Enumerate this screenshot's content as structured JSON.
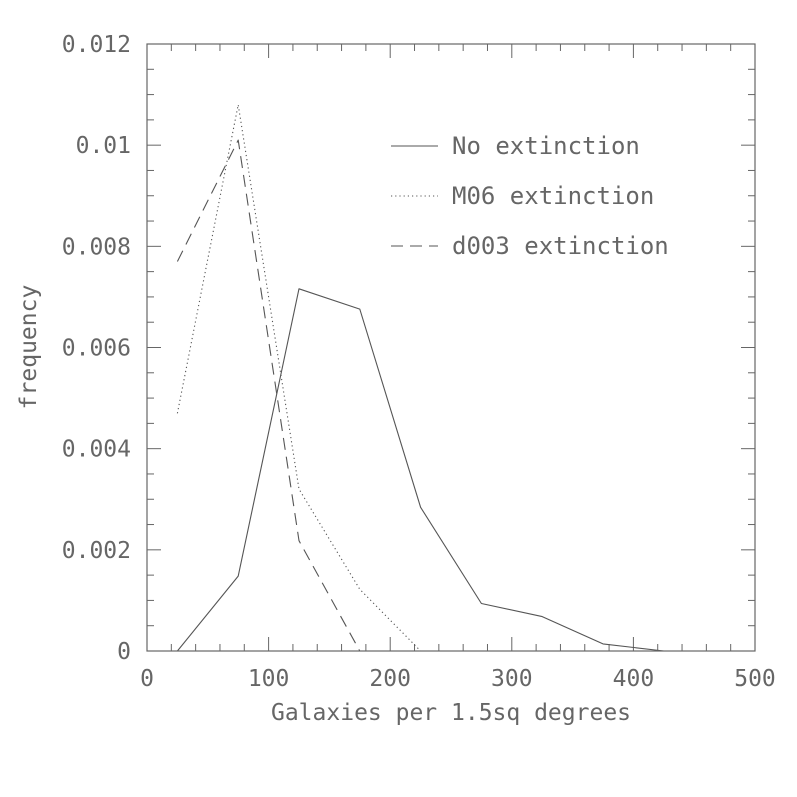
{
  "chart_data": {
    "type": "line",
    "title": "",
    "xlabel": "Galaxies per 1.5sq degrees",
    "ylabel": "frequency",
    "xlim": [
      0,
      500
    ],
    "ylim": [
      0,
      0.012
    ],
    "x_ticks": [
      0,
      100,
      200,
      300,
      400,
      500
    ],
    "x_tick_labels": [
      "0",
      "100",
      "200",
      "300",
      "400",
      "500"
    ],
    "y_ticks": [
      0,
      0.002,
      0.004,
      0.006,
      0.008,
      0.01,
      0.012
    ],
    "y_tick_labels": [
      "0",
      "0.002",
      "0.004",
      "0.006",
      "0.008",
      "0.01",
      "0.012"
    ],
    "x_minor_step": 20,
    "y_minor_step": 0.0005,
    "grid": false,
    "legend_position": "top-right",
    "series": [
      {
        "name": "No extinction",
        "style": "solid",
        "x": [
          25,
          75,
          125,
          175,
          225,
          275,
          325,
          375,
          425,
          475
        ],
        "y": [
          0.0,
          0.00148,
          0.00716,
          0.00676,
          0.00284,
          0.00094,
          0.00068,
          0.00014,
          0.0,
          0.0
        ]
      },
      {
        "name": "M06 extinction",
        "style": "dotted",
        "x": [
          25,
          75,
          125,
          175,
          225,
          275,
          325,
          375,
          425,
          475
        ],
        "y": [
          0.0047,
          0.0108,
          0.0032,
          0.00122,
          0.0,
          0.0,
          0.0,
          0.0,
          0.0,
          0.0
        ]
      },
      {
        "name": "d003 extinction",
        "style": "dashed",
        "x": [
          25,
          75,
          125,
          175,
          225,
          275,
          325,
          375,
          425,
          475
        ],
        "y": [
          0.0077,
          0.0101,
          0.00218,
          0.0,
          0.0,
          0.0,
          0.0,
          0.0,
          0.0,
          0.0
        ]
      }
    ]
  }
}
